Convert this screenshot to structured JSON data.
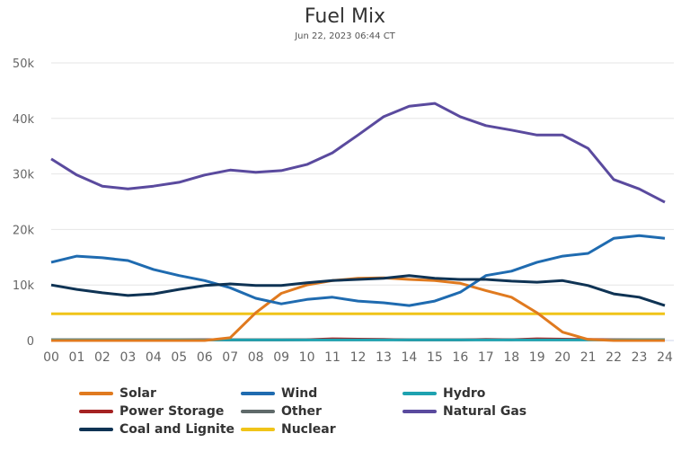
{
  "chart_data": {
    "type": "line",
    "title": "Fuel Mix",
    "subtitle": "Jun 22, 2023 06:44 CT",
    "x": [
      0,
      1,
      2,
      3,
      4,
      5,
      6,
      7,
      8,
      9,
      10,
      11,
      12,
      13,
      14,
      15,
      16,
      17,
      18,
      19,
      20,
      21,
      22,
      23,
      24
    ],
    "x_tick_labels": [
      "00",
      "01",
      "02",
      "03",
      "04",
      "05",
      "06",
      "07",
      "08",
      "09",
      "10",
      "11",
      "12",
      "13",
      "14",
      "15",
      "16",
      "17",
      "18",
      "19",
      "20",
      "21",
      "22",
      "23",
      "24"
    ],
    "y_tick_labels": [
      "0",
      "10k",
      "20k",
      "30k",
      "40k",
      "50k"
    ],
    "ylim": [
      0,
      50000
    ],
    "grid": true,
    "legend_placement": "bottom",
    "series": [
      {
        "name": "Solar",
        "color": "#e07a1f",
        "values": [
          0,
          0,
          0,
          0,
          0,
          0,
          0,
          500,
          5000,
          8500,
          10000,
          10800,
          11200,
          11300,
          11000,
          10800,
          10300,
          9000,
          7800,
          5000,
          1500,
          200,
          0,
          0,
          0
        ]
      },
      {
        "name": "Wind",
        "color": "#1f6bb0",
        "values": [
          14100,
          15200,
          14900,
          14400,
          12800,
          11700,
          10800,
          9500,
          7600,
          6600,
          7400,
          7800,
          7100,
          6800,
          6300,
          7100,
          8700,
          11700,
          12500,
          14100,
          15200,
          15700,
          18400,
          18900,
          18400
        ]
      },
      {
        "name": "Hydro",
        "color": "#1ea2b0",
        "values": [
          100,
          100,
          100,
          100,
          100,
          100,
          100,
          100,
          100,
          100,
          100,
          100,
          100,
          100,
          100,
          100,
          100,
          100,
          100,
          100,
          100,
          100,
          100,
          100,
          100
        ]
      },
      {
        "name": "Power Storage",
        "color": "#a52222",
        "values": [
          100,
          100,
          100,
          100,
          100,
          100,
          150,
          100,
          100,
          100,
          150,
          300,
          250,
          200,
          100,
          100,
          100,
          200,
          150,
          300,
          250,
          200,
          150,
          100,
          100
        ]
      },
      {
        "name": "Other",
        "color": "#5f6a6a",
        "values": [
          150,
          150,
          150,
          150,
          150,
          150,
          150,
          150,
          150,
          150,
          150,
          150,
          150,
          150,
          150,
          150,
          150,
          150,
          150,
          150,
          150,
          150,
          150,
          150,
          150
        ]
      },
      {
        "name": "Natural Gas",
        "color": "#5a4a9e",
        "values": [
          32700,
          29800,
          27800,
          27300,
          27800,
          28500,
          29800,
          30700,
          30300,
          30600,
          31700,
          33800,
          37000,
          40300,
          42200,
          42700,
          40300,
          38700,
          37900,
          37000,
          37000,
          34600,
          29000,
          27300,
          24900
        ]
      },
      {
        "name": "Coal and Lignite",
        "color": "#0f3354",
        "values": [
          10000,
          9200,
          8600,
          8100,
          8400,
          9200,
          9900,
          10200,
          9900,
          9900,
          10400,
          10800,
          11000,
          11200,
          11700,
          11200,
          11000,
          11000,
          10700,
          10500,
          10800,
          9900,
          8400,
          7800,
          6300
        ]
      },
      {
        "name": "Nuclear",
        "color": "#f0c419",
        "values": [
          4800,
          4800,
          4800,
          4800,
          4800,
          4800,
          4800,
          4800,
          4800,
          4800,
          4800,
          4800,
          4800,
          4800,
          4800,
          4800,
          4800,
          4800,
          4800,
          4800,
          4800,
          4800,
          4800,
          4800,
          4800
        ]
      }
    ]
  }
}
